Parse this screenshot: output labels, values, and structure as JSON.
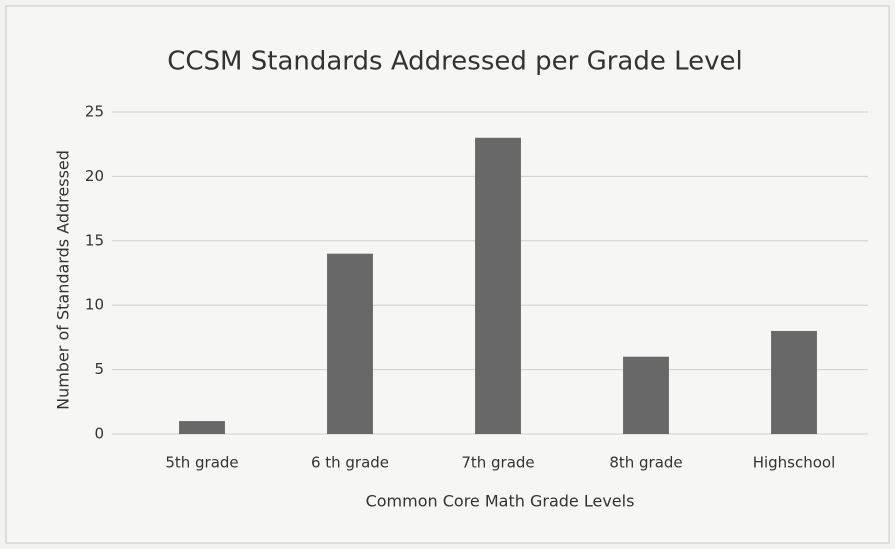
{
  "chart_data": {
    "type": "bar",
    "title": "CCSM Standards Addressed per Grade Level",
    "x_label": "Common Core Math Grade Levels",
    "y_label": "Number of Standards Addressed",
    "categories": [
      "5th grade",
      "6 th grade",
      "7th grade",
      "8th grade",
      "Highschool"
    ],
    "values": [
      1,
      14,
      23,
      6,
      8
    ],
    "color": "#686868",
    "ylim": [
      0,
      25
    ],
    "yticks": [
      0,
      5,
      10,
      15,
      20,
      25
    ],
    "grid": true
  }
}
